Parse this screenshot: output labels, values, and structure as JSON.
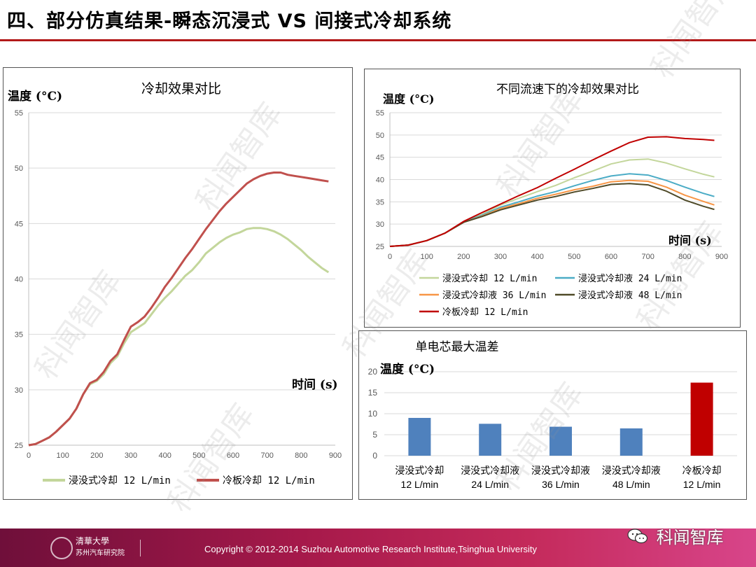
{
  "slide": {
    "title": "四、部分仿真结果-瞬态沉浸式 VS 间接式冷却系统"
  },
  "watermark": "科闻智库",
  "brand": "科闻智库",
  "footer": {
    "org_cn": "清華大學",
    "org_sub": "苏州汽车研究院",
    "copyright": "Copyright © 2012-2014 Suzhou Automotive Research Institute,Tsinghua University"
  },
  "chart_data": [
    {
      "type": "line",
      "title": "冷却效果对比",
      "ylabel": "温度 (°C)",
      "xlabel": "时间 (s)",
      "xlim": [
        0,
        900
      ],
      "ylim": [
        25,
        55
      ],
      "xticks": [
        0,
        100,
        200,
        300,
        400,
        500,
        600,
        700,
        800,
        900
      ],
      "yticks": [
        25,
        30,
        35,
        40,
        45,
        50,
        55
      ],
      "grid": "horizontal",
      "legend_position": "bottom",
      "series": [
        {
          "name": "浸没式冷却 12 L/min",
          "color": "#c3d69b",
          "x": [
            0,
            20,
            40,
            60,
            80,
            100,
            120,
            140,
            160,
            180,
            200,
            220,
            240,
            260,
            280,
            300,
            320,
            340,
            360,
            380,
            400,
            420,
            440,
            460,
            480,
            500,
            520,
            540,
            560,
            580,
            600,
            620,
            640,
            660,
            680,
            700,
            720,
            740,
            760,
            780,
            800,
            820,
            840,
            860,
            880
          ],
          "y": [
            25,
            25.1,
            25.4,
            25.7,
            26.2,
            26.8,
            27.4,
            28.3,
            29.6,
            30.5,
            30.8,
            31.4,
            32.4,
            33.0,
            34.2,
            35.2,
            35.6,
            36.0,
            36.8,
            37.6,
            38.3,
            38.9,
            39.6,
            40.3,
            40.8,
            41.5,
            42.3,
            42.8,
            43.3,
            43.7,
            44.0,
            44.2,
            44.5,
            44.6,
            44.6,
            44.5,
            44.3,
            44.0,
            43.6,
            43.1,
            42.6,
            42.0,
            41.5,
            41.0,
            40.6
          ]
        },
        {
          "name": "冷板冷却 12 L/min",
          "color": "#c0504d",
          "x": [
            0,
            20,
            40,
            60,
            80,
            100,
            120,
            140,
            160,
            180,
            200,
            220,
            240,
            260,
            280,
            300,
            320,
            340,
            360,
            380,
            400,
            420,
            440,
            460,
            480,
            500,
            520,
            540,
            560,
            580,
            600,
            620,
            640,
            660,
            680,
            700,
            720,
            740,
            760,
            780,
            800,
            820,
            840,
            860,
            880
          ],
          "y": [
            25,
            25.1,
            25.4,
            25.7,
            26.2,
            26.8,
            27.4,
            28.3,
            29.6,
            30.6,
            30.9,
            31.6,
            32.6,
            33.2,
            34.5,
            35.7,
            36.1,
            36.6,
            37.4,
            38.3,
            39.3,
            40.1,
            41.0,
            41.9,
            42.7,
            43.6,
            44.5,
            45.3,
            46.1,
            46.8,
            47.4,
            48.0,
            48.6,
            49.0,
            49.3,
            49.5,
            49.6,
            49.6,
            49.4,
            49.3,
            49.2,
            49.1,
            49.0,
            48.9,
            48.8
          ]
        }
      ]
    },
    {
      "type": "line",
      "title": "不同流速下的冷却效果对比",
      "ylabel": "温度 (°C)",
      "xlabel": "时间 (s)",
      "xlim": [
        0,
        900
      ],
      "ylim": [
        25,
        55
      ],
      "xticks": [
        0,
        100,
        200,
        300,
        400,
        500,
        600,
        700,
        800,
        900
      ],
      "yticks": [
        25,
        30,
        35,
        40,
        45,
        50,
        55
      ],
      "grid": "horizontal",
      "legend_position": "bottom",
      "series": [
        {
          "name": "浸没式冷却 12 L/min",
          "color": "#c3d69b",
          "x": [
            0,
            50,
            100,
            150,
            200,
            250,
            300,
            350,
            400,
            450,
            500,
            550,
            600,
            650,
            700,
            750,
            800,
            850,
            880
          ],
          "y": [
            25,
            25.3,
            26.3,
            28.0,
            30.5,
            32.2,
            34.3,
            35.8,
            37.3,
            38.7,
            40.4,
            41.9,
            43.5,
            44.4,
            44.6,
            43.7,
            42.4,
            41.2,
            40.6
          ]
        },
        {
          "name": "浸没式冷却液 24 L/min",
          "color": "#4bacc6",
          "x": [
            0,
            50,
            100,
            150,
            200,
            250,
            300,
            350,
            400,
            450,
            500,
            550,
            600,
            650,
            700,
            750,
            800,
            850,
            880
          ],
          "y": [
            25,
            25.3,
            26.3,
            28.0,
            30.5,
            32.0,
            33.8,
            35.0,
            36.3,
            37.3,
            38.6,
            39.8,
            40.8,
            41.3,
            41.0,
            39.8,
            38.3,
            36.9,
            36.2
          ]
        },
        {
          "name": "浸没式冷却液 36 L/min",
          "color": "#f79646",
          "x": [
            0,
            50,
            100,
            150,
            200,
            250,
            300,
            350,
            400,
            450,
            500,
            550,
            600,
            650,
            700,
            750,
            800,
            850,
            880
          ],
          "y": [
            25,
            25.3,
            26.3,
            28.0,
            30.4,
            31.8,
            33.5,
            34.6,
            35.8,
            36.7,
            37.7,
            38.5,
            39.5,
            39.8,
            39.6,
            38.3,
            36.5,
            35.1,
            34.3
          ]
        },
        {
          "name": "浸没式冷却液 48 L/min",
          "color": "#4f4a28",
          "x": [
            0,
            50,
            100,
            150,
            200,
            250,
            300,
            350,
            400,
            450,
            500,
            550,
            600,
            650,
            700,
            750,
            800,
            850,
            880
          ],
          "y": [
            25,
            25.3,
            26.3,
            28.0,
            30.4,
            31.7,
            33.2,
            34.3,
            35.4,
            36.2,
            37.2,
            38.0,
            38.9,
            39.1,
            38.8,
            37.4,
            35.4,
            34.0,
            33.3
          ]
        },
        {
          "name": "冷板冷却 12 L/min",
          "color": "#c00000",
          "x": [
            0,
            50,
            100,
            150,
            200,
            250,
            300,
            350,
            400,
            450,
            500,
            550,
            600,
            650,
            700,
            750,
            800,
            850,
            880
          ],
          "y": [
            25,
            25.3,
            26.3,
            28.0,
            30.6,
            32.6,
            34.5,
            36.4,
            38.2,
            40.3,
            42.3,
            44.4,
            46.4,
            48.3,
            49.5,
            49.6,
            49.2,
            49.0,
            48.8
          ]
        }
      ]
    },
    {
      "type": "bar",
      "title": "单电芯最大温差",
      "ylabel": "温度 (°C)",
      "ylim": [
        0,
        20
      ],
      "yticks": [
        0,
        5,
        10,
        15,
        20
      ],
      "grid": "horizontal",
      "categories": [
        [
          "浸没式冷却",
          "12 L/min"
        ],
        [
          "浸没式冷却液",
          "24 L/min"
        ],
        [
          "浸没式冷却液",
          "36 L/min"
        ],
        [
          "浸没式冷却液",
          "48 L/min"
        ],
        [
          "冷板冷却",
          "12 L/min"
        ]
      ],
      "values": [
        9.0,
        7.6,
        6.9,
        6.5,
        17.4
      ],
      "colors": [
        "#4f81bd",
        "#4f81bd",
        "#4f81bd",
        "#4f81bd",
        "#c00000"
      ]
    }
  ]
}
